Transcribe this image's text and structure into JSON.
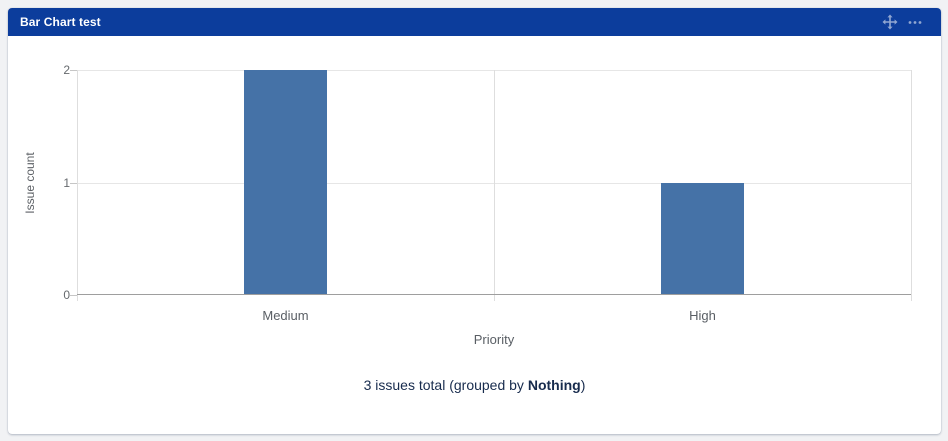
{
  "widget": {
    "title": "Bar Chart test",
    "header_color": "#0c3d9c",
    "icon_color": "rgba(255,255,255,0.55)",
    "header_icons": [
      {
        "name": "move-icon"
      },
      {
        "name": "more-options-icon"
      }
    ]
  },
  "chart_data": {
    "type": "bar",
    "title": "",
    "categories": [
      "Medium",
      "High"
    ],
    "values": [
      2,
      1
    ],
    "xlabel": "Priority",
    "ylabel": "Issue count",
    "ylim": [
      0,
      2
    ],
    "yticks": [
      0,
      1,
      2
    ],
    "bar_color": "#4572A7",
    "grid": true,
    "legend": false
  },
  "footer": {
    "prefix": "3 issues total (grouped by ",
    "bold": "Nothing",
    "suffix": ")"
  }
}
